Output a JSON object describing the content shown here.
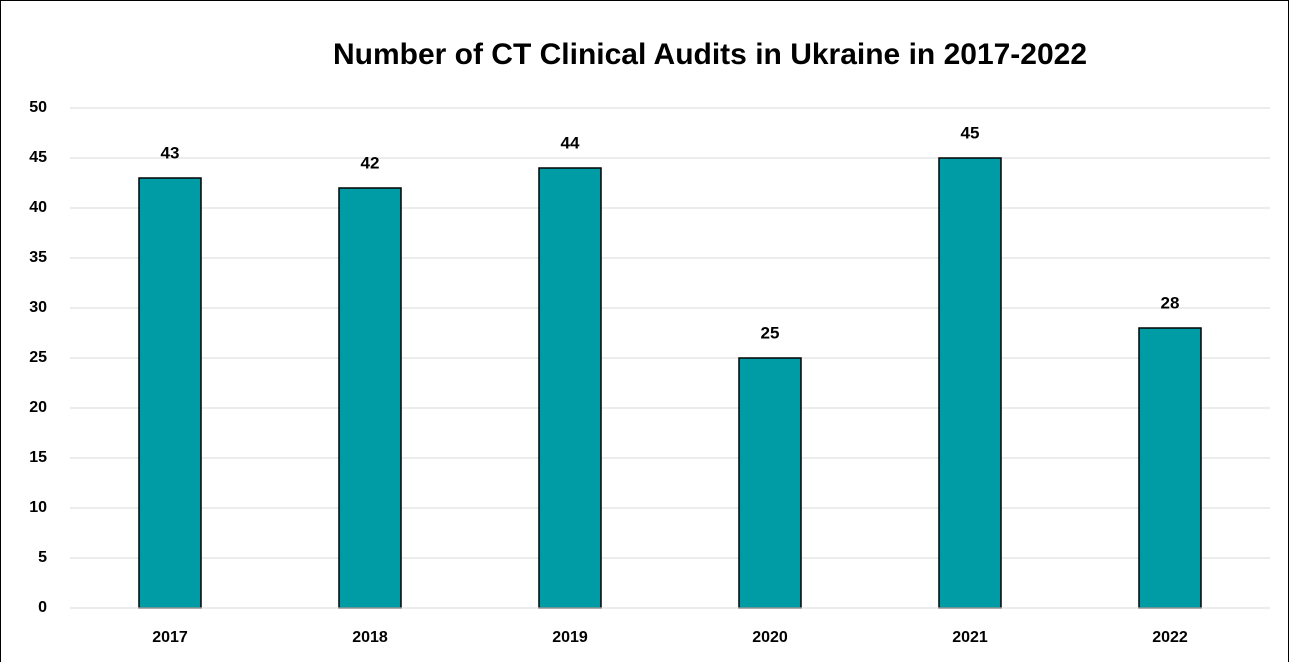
{
  "chart_data": {
    "type": "bar",
    "title": "Number of CT Clinical Audits in Ukraine in 2017-2022",
    "categories": [
      "2017",
      "2018",
      "2019",
      "2020",
      "2021",
      "2022"
    ],
    "values": [
      43,
      42,
      44,
      25,
      45,
      28
    ],
    "color": "#009ca6",
    "ylim": [
      0,
      50
    ],
    "yticks": [
      0,
      5,
      10,
      15,
      20,
      25,
      30,
      35,
      40,
      45,
      50
    ],
    "grid": true
  }
}
